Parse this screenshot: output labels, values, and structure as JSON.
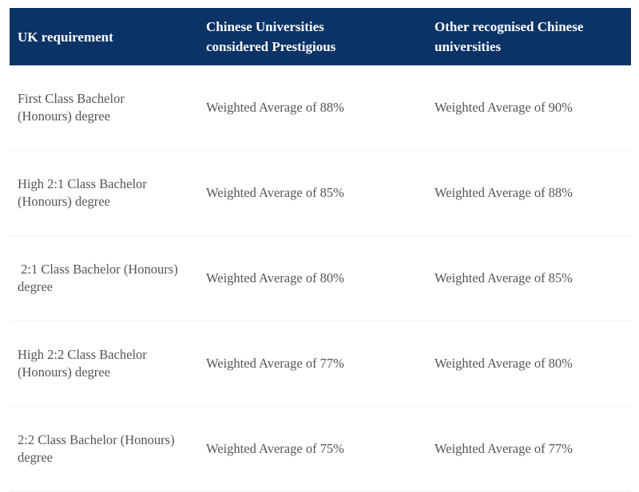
{
  "header": {
    "columns": [
      [
        "UK requirement"
      ],
      [
        "Chinese Universities",
        "considered Prestigious"
      ],
      [
        "Other recognised Chinese",
        "universities"
      ]
    ]
  },
  "table": {
    "rows": [
      [
        [
          "First Class Bachelor",
          "(Honours) degree"
        ],
        [
          "Weighted Average of 88%"
        ],
        [
          "Weighted Average of 90%"
        ]
      ],
      [
        [
          "High 2:1 Class Bachelor",
          "(Honours) degree"
        ],
        [
          "Weighted Average of 85%"
        ],
        [
          "Weighted Average of 88%"
        ]
      ],
      [
        [
          " 2:1 Class Bachelor (Honours)",
          "degree"
        ],
        [
          "Weighted Average of 80%"
        ],
        [
          "Weighted Average of 85%"
        ]
      ],
      [
        [
          "High 2:2 Class Bachelor",
          "(Honours) degree"
        ],
        [
          "Weighted Average of 77%"
        ],
        [
          "Weighted Average of 80%"
        ]
      ],
      [
        [
          "2:2 Class Bachelor (Honours)",
          "degree"
        ],
        [
          "Weighted Average of 75%"
        ],
        [
          "Weighted Average of 77%"
        ]
      ]
    ]
  }
}
